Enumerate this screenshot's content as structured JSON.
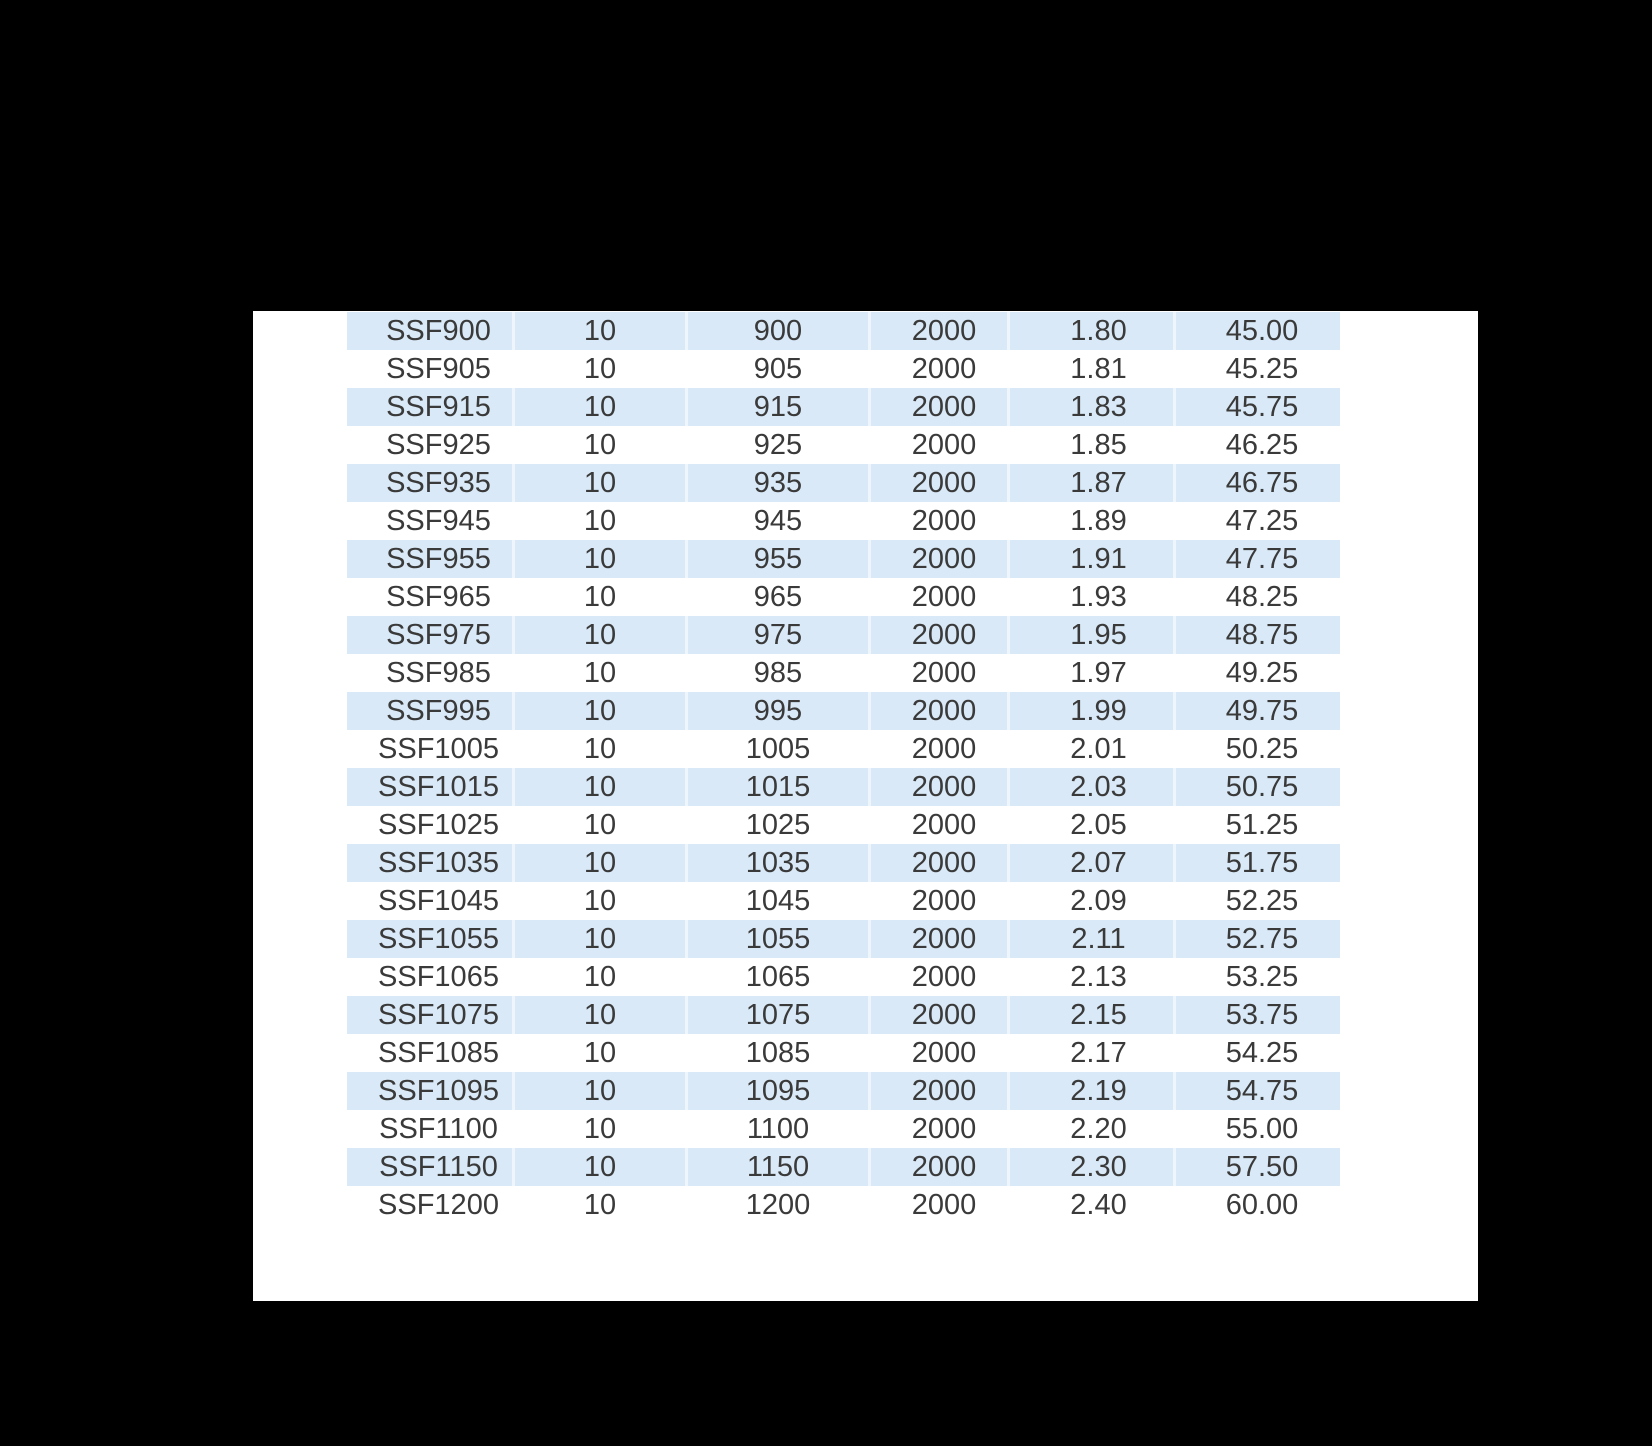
{
  "viewer": {
    "background_color": "#000000"
  },
  "page": {
    "background_color": "#ffffff"
  },
  "table": {
    "banded_row_color": "#d9e9f7",
    "plain_row_color": "#ffffff",
    "text_color": "#3a3a3a",
    "column_count": 6,
    "first_row_banded": true,
    "rows": [
      [
        "SSF900",
        "10",
        "900",
        "2000",
        "1.80",
        "45.00"
      ],
      [
        "SSF905",
        "10",
        "905",
        "2000",
        "1.81",
        "45.25"
      ],
      [
        "SSF915",
        "10",
        "915",
        "2000",
        "1.83",
        "45.75"
      ],
      [
        "SSF925",
        "10",
        "925",
        "2000",
        "1.85",
        "46.25"
      ],
      [
        "SSF935",
        "10",
        "935",
        "2000",
        "1.87",
        "46.75"
      ],
      [
        "SSF945",
        "10",
        "945",
        "2000",
        "1.89",
        "47.25"
      ],
      [
        "SSF955",
        "10",
        "955",
        "2000",
        "1.91",
        "47.75"
      ],
      [
        "SSF965",
        "10",
        "965",
        "2000",
        "1.93",
        "48.25"
      ],
      [
        "SSF975",
        "10",
        "975",
        "2000",
        "1.95",
        "48.75"
      ],
      [
        "SSF985",
        "10",
        "985",
        "2000",
        "1.97",
        "49.25"
      ],
      [
        "SSF995",
        "10",
        "995",
        "2000",
        "1.99",
        "49.75"
      ],
      [
        "SSF1005",
        "10",
        "1005",
        "2000",
        "2.01",
        "50.25"
      ],
      [
        "SSF1015",
        "10",
        "1015",
        "2000",
        "2.03",
        "50.75"
      ],
      [
        "SSF1025",
        "10",
        "1025",
        "2000",
        "2.05",
        "51.25"
      ],
      [
        "SSF1035",
        "10",
        "1035",
        "2000",
        "2.07",
        "51.75"
      ],
      [
        "SSF1045",
        "10",
        "1045",
        "2000",
        "2.09",
        "52.25"
      ],
      [
        "SSF1055",
        "10",
        "1055",
        "2000",
        "2.11",
        "52.75"
      ],
      [
        "SSF1065",
        "10",
        "1065",
        "2000",
        "2.13",
        "53.25"
      ],
      [
        "SSF1075",
        "10",
        "1075",
        "2000",
        "2.15",
        "53.75"
      ],
      [
        "SSF1085",
        "10",
        "1085",
        "2000",
        "2.17",
        "54.25"
      ],
      [
        "SSF1095",
        "10",
        "1095",
        "2000",
        "2.19",
        "54.75"
      ],
      [
        "SSF1100",
        "10",
        "1100",
        "2000",
        "2.20",
        "55.00"
      ],
      [
        "SSF1150",
        "10",
        "1150",
        "2000",
        "2.30",
        "57.50"
      ],
      [
        "SSF1200",
        "10",
        "1200",
        "2000",
        "2.40",
        "60.00"
      ]
    ]
  }
}
